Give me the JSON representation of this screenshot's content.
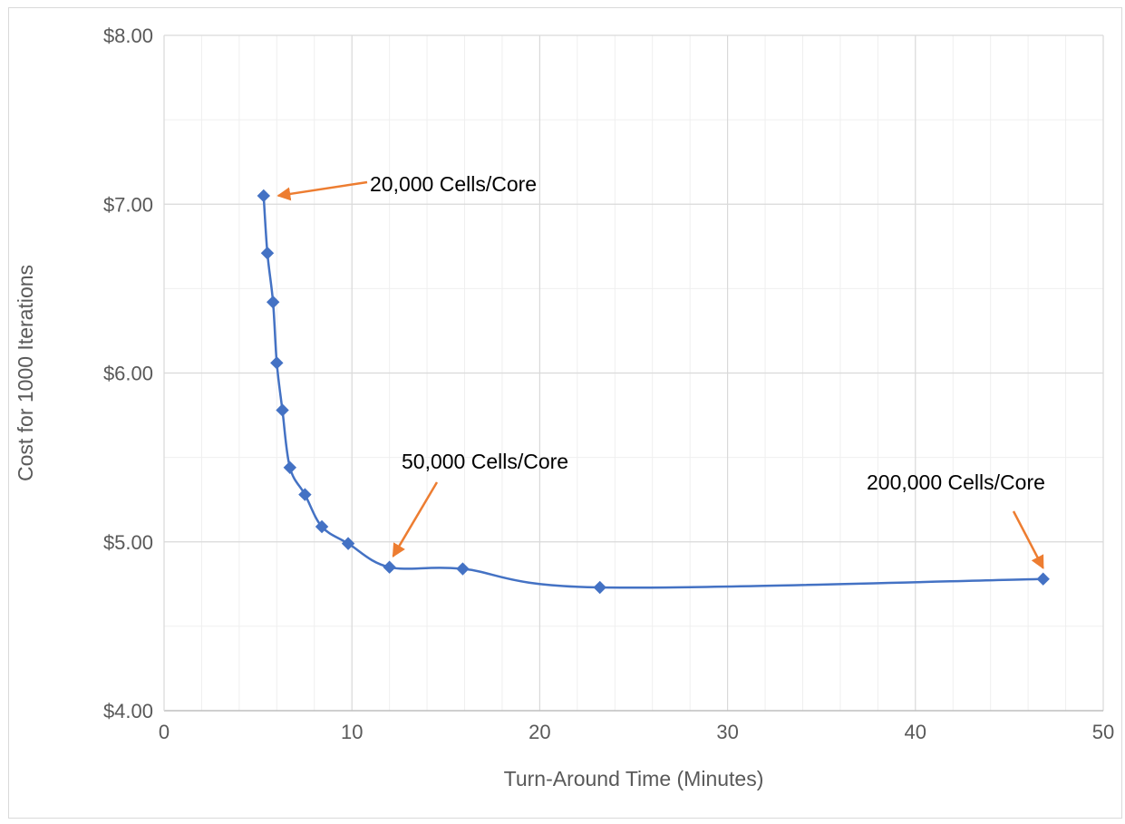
{
  "chart_data": {
    "type": "scatter",
    "title": "",
    "xlabel": "Turn-Around Time (Minutes)",
    "ylabel": "Cost for 1000 Iterations",
    "xlim": [
      0,
      50
    ],
    "ylim": [
      4,
      8
    ],
    "x_ticks": [
      {
        "value": 0,
        "label": "0"
      },
      {
        "value": 10,
        "label": "10"
      },
      {
        "value": 20,
        "label": "20"
      },
      {
        "value": 30,
        "label": "30"
      },
      {
        "value": 40,
        "label": "40"
      },
      {
        "value": 50,
        "label": "50"
      }
    ],
    "y_ticks": [
      {
        "value": 4,
        "label": "$4.00"
      },
      {
        "value": 5,
        "label": "$5.00"
      },
      {
        "value": 6,
        "label": "$6.00"
      },
      {
        "value": 7,
        "label": "$7.00"
      },
      {
        "value": 8,
        "label": "$8.00"
      }
    ],
    "minor_x_step": 2,
    "minor_y_step": 0.5,
    "grid": true,
    "legend": false,
    "smooth": true,
    "marker": "diamond",
    "series": [
      {
        "color": "#4472c4",
        "points": [
          {
            "x": 5.3,
            "y": 7.05
          },
          {
            "x": 5.5,
            "y": 6.71
          },
          {
            "x": 5.8,
            "y": 6.42
          },
          {
            "x": 6.0,
            "y": 6.06
          },
          {
            "x": 6.3,
            "y": 5.78
          },
          {
            "x": 6.7,
            "y": 5.44
          },
          {
            "x": 7.5,
            "y": 5.28
          },
          {
            "x": 8.4,
            "y": 5.09
          },
          {
            "x": 9.8,
            "y": 4.99
          },
          {
            "x": 12.0,
            "y": 4.85
          },
          {
            "x": 15.9,
            "y": 4.84
          },
          {
            "x": 23.2,
            "y": 4.73
          },
          {
            "x": 46.8,
            "y": 4.78
          }
        ]
      }
    ],
    "annotations": [
      {
        "text": "20,000 Cells/Core",
        "point_index": 0,
        "color": "#ed7d31"
      },
      {
        "text": "50,000 Cells/Core",
        "point_index": 9,
        "color": "#ed7d31"
      },
      {
        "text": "200,000 Cells/Core",
        "point_index": 12,
        "color": "#ed7d31"
      }
    ]
  }
}
